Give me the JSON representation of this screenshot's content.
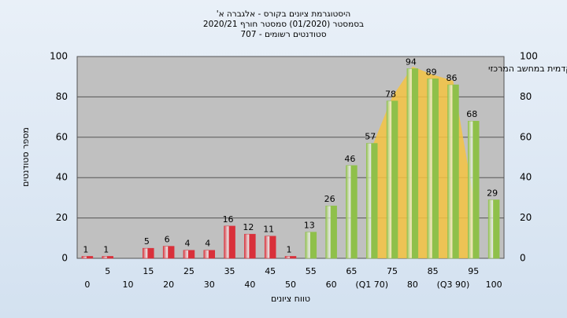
{
  "chart_data": {
    "type": "bar",
    "title": "היסטוגרמת ציונים בקורס - אלגברה א'",
    "subtitle": "בסמסטר  (01/2020)  סמסטר חורף 2020/21",
    "subtitle2": "סטודנטים רשומים - 707",
    "annotation": "במשימה: ציון סופי במערכת האקדמית במחשב המרכזי",
    "xlabel": "טווח ציונים",
    "ylabel": "מספר סטודנטים",
    "categories": [
      "0",
      "5",
      "10",
      "15",
      "20",
      "25",
      "30",
      "35",
      "40",
      "45",
      "50",
      "55",
      "60",
      "65",
      "(Q1 70)",
      "75",
      "80",
      "85",
      "(Q3 90)",
      "95",
      "100"
    ],
    "values": [
      1,
      1,
      null,
      5,
      6,
      4,
      4,
      16,
      12,
      11,
      1,
      13,
      26,
      46,
      57,
      78,
      94,
      89,
      86,
      68,
      29
    ],
    "colors": [
      "#d9303a",
      "#d9303a",
      "#d9303a",
      "#d9303a",
      "#d9303a",
      "#d9303a",
      "#d9303a",
      "#d9303a",
      "#d9303a",
      "#d9303a",
      "#d9303a",
      "#8fc04a",
      "#8fc04a",
      "#8fc04a",
      "#8fc04a",
      "#8fc04a",
      "#8fc04a",
      "#8fc04a",
      "#8fc04a",
      "#8fc04a",
      "#8fc04a"
    ],
    "area": {
      "color": "#f5c342",
      "values": [
        null,
        null,
        null,
        null,
        null,
        null,
        null,
        null,
        null,
        null,
        null,
        null,
        null,
        null,
        55,
        80,
        95,
        91,
        88,
        30,
        null
      ]
    },
    "ylim": [
      0,
      100
    ],
    "yticks": [
      0,
      20,
      40,
      60,
      80,
      100
    ],
    "grid": true
  }
}
